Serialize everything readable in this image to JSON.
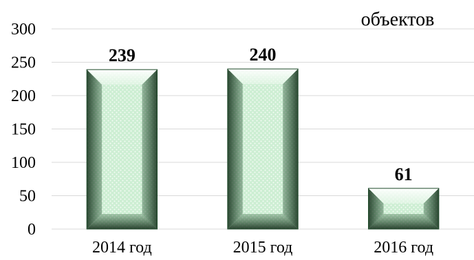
{
  "chart_data": {
    "type": "bar",
    "unit_label": "объектов",
    "categories": [
      "2014 год",
      "2015 год",
      "2016 год"
    ],
    "values": [
      239,
      240,
      61
    ],
    "data_labels": [
      "239",
      "240",
      "61"
    ],
    "yticks": [
      "0",
      "50",
      "100",
      "150",
      "200",
      "250",
      "300"
    ],
    "ylim": [
      0,
      300
    ],
    "grid": true,
    "bar_color": "#c8eccd",
    "bar_edge_color": "#1f4a2a"
  }
}
